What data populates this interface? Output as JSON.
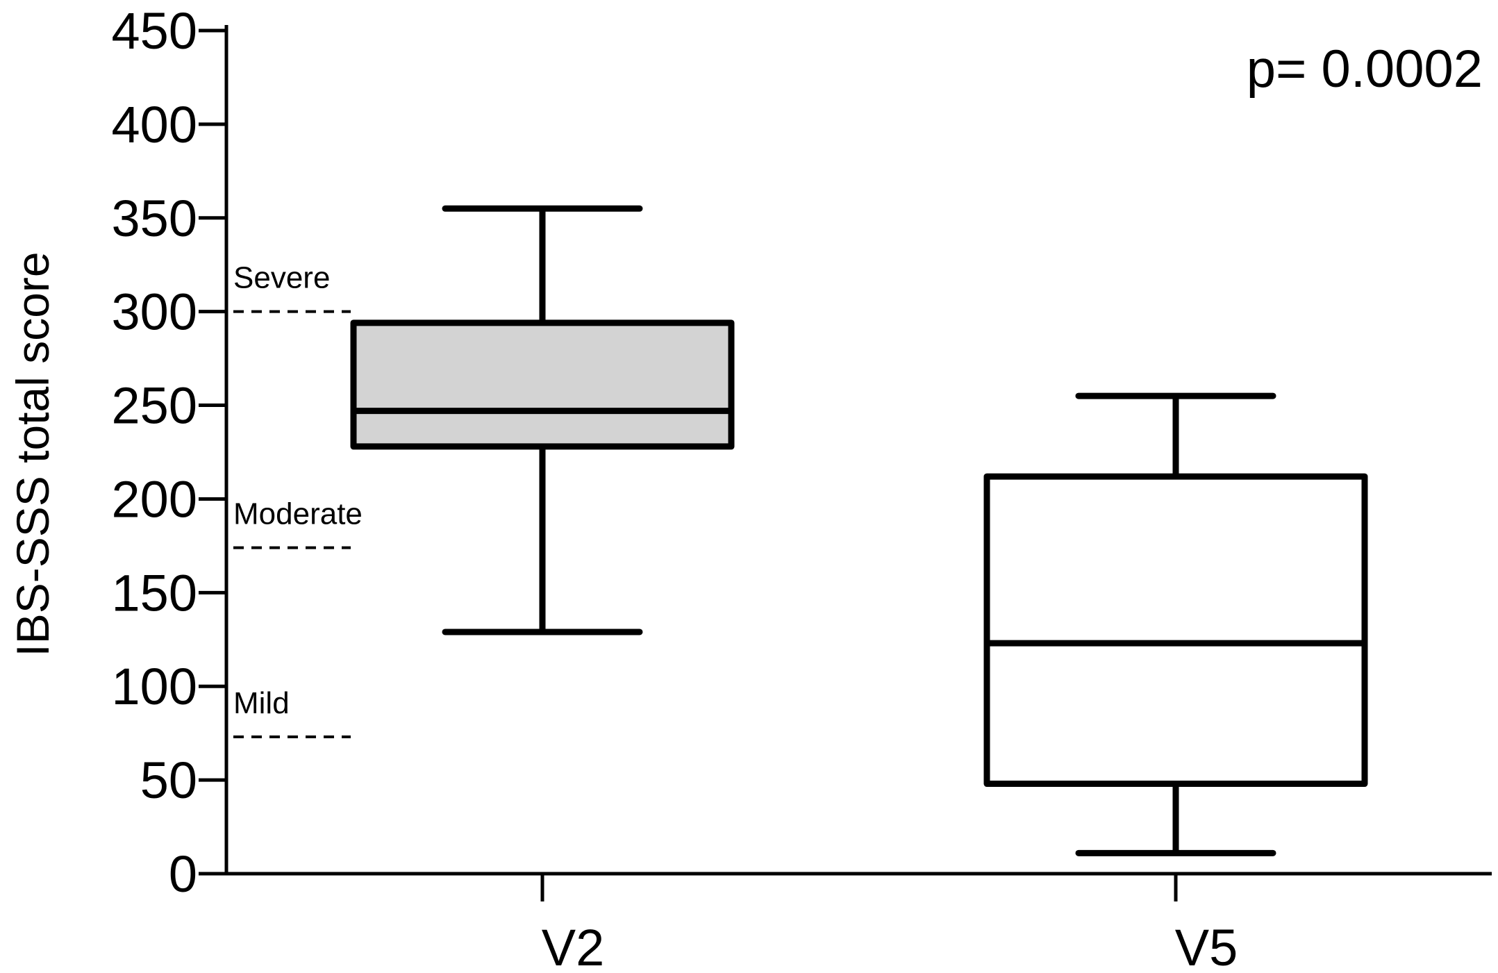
{
  "chart_data": {
    "type": "box",
    "title": "",
    "xlabel": "",
    "ylabel": "IBS-SSS total score",
    "ylim": [
      0,
      450
    ],
    "yticks": [
      0,
      50,
      100,
      150,
      200,
      250,
      300,
      350,
      400,
      450
    ],
    "ytick_labels": [
      "0",
      "50",
      "100",
      "150",
      "200",
      "250",
      "300",
      "350",
      "400",
      "450"
    ],
    "categories": [
      "V2",
      "V5"
    ],
    "boxes": [
      {
        "category": "V2",
        "whisker_low": 129,
        "q1": 228,
        "median": 247,
        "q3": 294,
        "whisker_high": 355,
        "fill": "#d3d3d3"
      },
      {
        "category": "V5",
        "whisker_low": 11,
        "q1": 48,
        "median": 123,
        "q3": 212,
        "whisker_high": 255,
        "fill": "#ffffff"
      }
    ],
    "reference_lines": [
      {
        "label": "Severe",
        "value": 300
      },
      {
        "label": "Moderate",
        "value": 174
      },
      {
        "label": "Mild",
        "value": 73
      }
    ],
    "annotation": "p= 0.0002",
    "grid": false,
    "legend": "none"
  }
}
